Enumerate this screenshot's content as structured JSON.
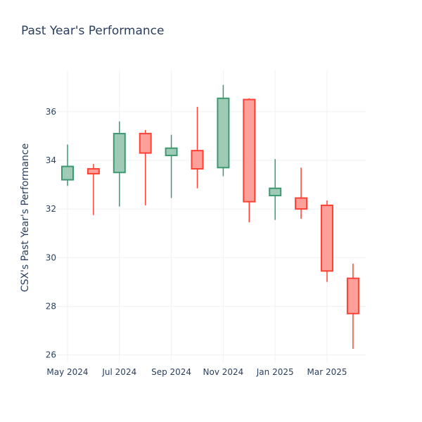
{
  "chart_data": {
    "type": "candlestick",
    "title": "Past Year's Performance",
    "xlabel": "",
    "ylabel": "CSX's Past Year's Performance",
    "x_tick_labels": [
      "May 2024",
      "Jul 2024",
      "Sep 2024",
      "Nov 2024",
      "Jan 2025",
      "Mar 2025"
    ],
    "y_ticks": [
      26,
      28,
      30,
      32,
      34,
      36
    ],
    "ylim": [
      25.7,
      37.7
    ],
    "grid": true,
    "colors": {
      "increasing_line": "#3d9970",
      "increasing_fill": "#9ecab6",
      "decreasing_line": "#ff4136",
      "decreasing_fill": "#ff9f99"
    },
    "candles": [
      {
        "month": "May 2024",
        "open": 33.2,
        "high": 34.65,
        "low": 32.95,
        "close": 33.75
      },
      {
        "month": "Jun 2024",
        "open": 33.65,
        "high": 33.85,
        "low": 31.75,
        "close": 33.45
      },
      {
        "month": "Jul 2024",
        "open": 33.5,
        "high": 35.6,
        "low": 32.1,
        "close": 35.1
      },
      {
        "month": "Aug 2024",
        "open": 35.1,
        "high": 35.25,
        "low": 32.15,
        "close": 34.3
      },
      {
        "month": "Sep 2024",
        "open": 34.2,
        "high": 35.05,
        "low": 32.45,
        "close": 34.5
      },
      {
        "month": "Oct 2024",
        "open": 34.4,
        "high": 36.2,
        "low": 32.85,
        "close": 33.65
      },
      {
        "month": "Nov 2024",
        "open": 33.7,
        "high": 37.1,
        "low": 33.35,
        "close": 36.55
      },
      {
        "month": "Dec 2024",
        "open": 36.5,
        "high": 36.55,
        "low": 31.45,
        "close": 32.3
      },
      {
        "month": "Jan 2025",
        "open": 32.55,
        "high": 34.05,
        "low": 31.55,
        "close": 32.85
      },
      {
        "month": "Feb 2025",
        "open": 32.45,
        "high": 33.7,
        "low": 31.6,
        "close": 32.0
      },
      {
        "month": "Mar 2025",
        "open": 32.15,
        "high": 32.35,
        "low": 29.0,
        "close": 29.45
      },
      {
        "month": "Apr 2025",
        "open": 29.15,
        "high": 29.75,
        "low": 26.25,
        "close": 27.7
      }
    ]
  }
}
